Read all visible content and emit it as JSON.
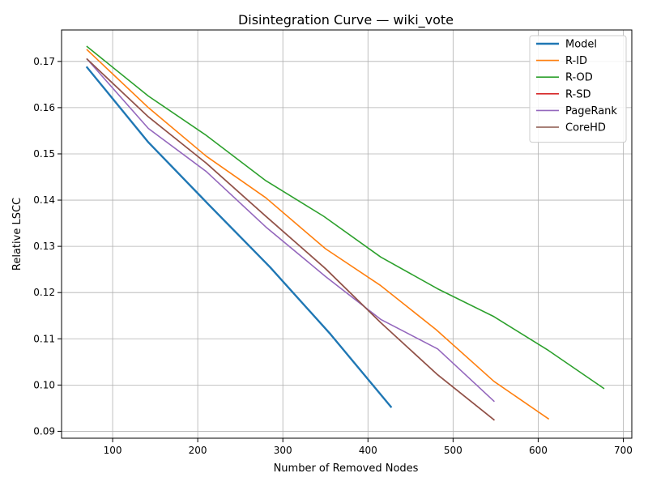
{
  "chart_data": {
    "type": "line",
    "title": "Disintegration Curve — wiki_vote",
    "xlabel": "Number of Removed Nodes",
    "ylabel": "Relative LSCC",
    "xlim": [
      40,
      710
    ],
    "ylim": [
      0.0885,
      0.1768
    ],
    "xticks": [
      "100",
      "200",
      "300",
      "400",
      "500",
      "600",
      "700"
    ],
    "yticks": [
      "0.09",
      "0.10",
      "0.11",
      "0.12",
      "0.13",
      "0.14",
      "0.15",
      "0.16",
      "0.17"
    ],
    "grid": true,
    "legend_position": "top-right",
    "series": [
      {
        "name": "Model",
        "color": "#1f77b4",
        "width": 2.4,
        "x": [
          70,
          142,
          213,
          285,
          356,
          427
        ],
        "y": [
          0.1687,
          0.1525,
          0.139,
          0.1255,
          0.111,
          0.0953
        ]
      },
      {
        "name": "R-ID",
        "color": "#ff7f0e",
        "width": 1.6,
        "x": [
          70,
          142,
          210,
          280,
          350,
          415,
          480,
          548,
          612
        ],
        "y": [
          0.1725,
          0.16,
          0.1495,
          0.1405,
          0.1295,
          0.1215,
          0.112,
          0.1008,
          0.0927
        ]
      },
      {
        "name": "R-OD",
        "color": "#2ca02c",
        "width": 1.6,
        "x": [
          70,
          142,
          210,
          280,
          348,
          415,
          482,
          548,
          612,
          677
        ],
        "y": [
          0.1732,
          0.1625,
          0.154,
          0.1442,
          0.1365,
          0.1277,
          0.1208,
          0.1148,
          0.1075,
          0.0993
        ]
      },
      {
        "name": "R-SD",
        "color": "#d62728",
        "width": 1.6,
        "x": [
          70,
          142,
          210,
          280,
          350,
          415,
          482,
          548
        ],
        "y": [
          0.1705,
          0.158,
          0.148,
          0.1365,
          0.1252,
          0.1135,
          0.1022,
          0.0925
        ]
      },
      {
        "name": "PageRank",
        "color": "#9467bd",
        "width": 1.6,
        "x": [
          70,
          142,
          210,
          280,
          350,
          415,
          482,
          548
        ],
        "y": [
          0.1705,
          0.1555,
          0.1462,
          0.1342,
          0.1235,
          0.1142,
          0.1078,
          0.0965
        ]
      },
      {
        "name": "CoreHD",
        "color": "#8c564b",
        "width": 1.6,
        "x": [
          70,
          142,
          210,
          280,
          350,
          415,
          482,
          548
        ],
        "y": [
          0.1705,
          0.158,
          0.148,
          0.1365,
          0.1252,
          0.1135,
          0.1022,
          0.0925
        ]
      }
    ]
  }
}
